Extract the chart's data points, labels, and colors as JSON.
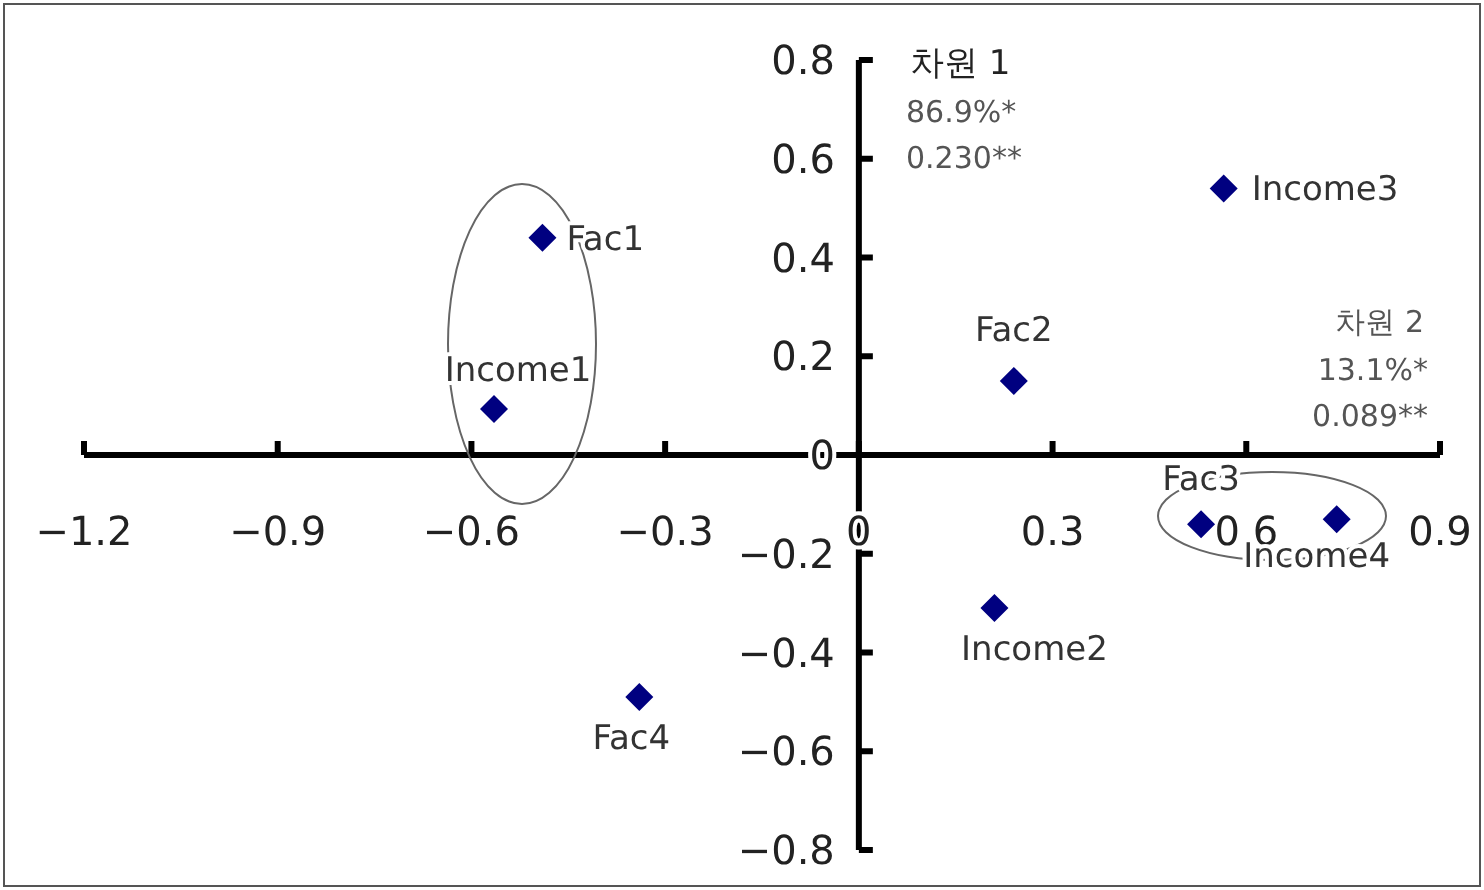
{
  "chart_data": {
    "type": "scatter",
    "x": [
      -0.49,
      -0.565,
      0.24,
      0.565,
      0.53,
      0.74,
      0.21,
      -0.34
    ],
    "series": [
      {
        "color": "#000080",
        "values": [
          0.44,
          0.093,
          0.15,
          0.54,
          -0.14,
          -0.13,
          -0.31,
          -0.49
        ]
      }
    ],
    "xlim": [
      -1.2,
      0.9
    ],
    "xticks": [
      -1.2,
      -0.9,
      -0.6,
      -0.3,
      0,
      0.3,
      0.6,
      0.9
    ],
    "ylim": [
      -0.8,
      0.8
    ],
    "yticks": [
      -0.8,
      -0.6,
      -0.4,
      -0.2,
      0,
      0.2,
      0.4,
      0.6,
      0.8
    ],
    "marker": "diamond",
    "grid": false,
    "annotations": [
      {
        "text": "Fac1",
        "x": -0.49,
        "y": 0.44
      },
      {
        "text": "Income1",
        "x": -0.565,
        "y": 0.093
      },
      {
        "text": "Fac2",
        "x": 0.24,
        "y": 0.15
      },
      {
        "text": "Income3",
        "x": 0.565,
        "y": 0.54
      },
      {
        "text": "Fac3",
        "x": 0.53,
        "y": -0.14
      },
      {
        "text": "Income4",
        "x": 0.74,
        "y": -0.13
      },
      {
        "text": "Income2",
        "x": 0.21,
        "y": -0.31
      },
      {
        "text": "Fac4",
        "x": -0.34,
        "y": -0.49
      },
      "차원 1",
      "86.9%*",
      "0.230**",
      "차원 2",
      "13.1%*",
      "0.089**"
    ]
  }
}
